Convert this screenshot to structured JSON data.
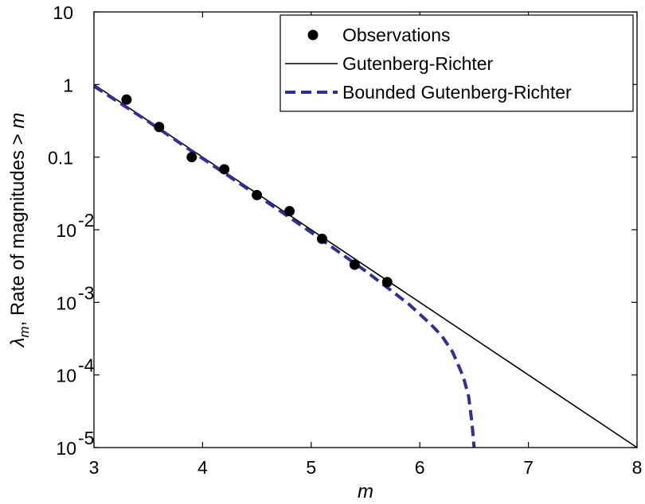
{
  "chart_data": {
    "type": "scatter",
    "title": "",
    "xlabel": "m",
    "ylabel": "λm, Rate of magnitudes > m",
    "ylabel_parts": {
      "symbol": "λ",
      "sub": "m",
      "rest": ", Rate of magnitudes > ",
      "var": "m"
    },
    "xlim": [
      3,
      8
    ],
    "ylim": [
      1e-05,
      10
    ],
    "yscale": "log",
    "grid": false,
    "legend_position": "top-right",
    "x_ticks": [
      3,
      4,
      5,
      6,
      7,
      8
    ],
    "x_tick_labels": [
      "3",
      "4",
      "5",
      "6",
      "7",
      "8"
    ],
    "y_ticks": [
      {
        "value": 10,
        "base": "10",
        "exp": ""
      },
      {
        "value": 1,
        "base": "1",
        "exp": ""
      },
      {
        "value": 0.1,
        "base": "0.1",
        "exp": ""
      },
      {
        "value": 0.01,
        "base": "10",
        "exp": "-2"
      },
      {
        "value": 0.001,
        "base": "10",
        "exp": "-3"
      },
      {
        "value": 0.0001,
        "base": "10",
        "exp": "-4"
      },
      {
        "value": 1e-05,
        "base": "10",
        "exp": "-5"
      }
    ],
    "series": [
      {
        "name": "Observations",
        "kind": "scatter",
        "color": "#000000",
        "x": [
          3.3,
          3.6,
          3.9,
          4.2,
          4.5,
          4.8,
          5.1,
          5.4,
          5.7
        ],
        "y": [
          0.62,
          0.26,
          0.1,
          0.068,
          0.03,
          0.018,
          0.0075,
          0.0033,
          0.0019
        ]
      },
      {
        "name": "Gutenberg-Richter",
        "kind": "line",
        "color": "#000000",
        "dash": "solid",
        "x": [
          3,
          8
        ],
        "y": [
          1,
          1e-05
        ]
      },
      {
        "name": "Bounded Gutenberg-Richter",
        "kind": "line",
        "color": "#2e3192",
        "dash": "dashed",
        "x": [
          3,
          3.5,
          4,
          4.5,
          5,
          5.5,
          5.7,
          5.9,
          6.1,
          6.2,
          6.3,
          6.4,
          6.45,
          6.48,
          6.5
        ],
        "y": [
          0.95,
          0.31,
          0.096,
          0.03,
          0.0092,
          0.0027,
          0.0016,
          0.00094,
          0.0005,
          0.00035,
          0.00021,
          9.5e-05,
          5e-05,
          2.2e-05,
          1e-05
        ]
      }
    ]
  }
}
